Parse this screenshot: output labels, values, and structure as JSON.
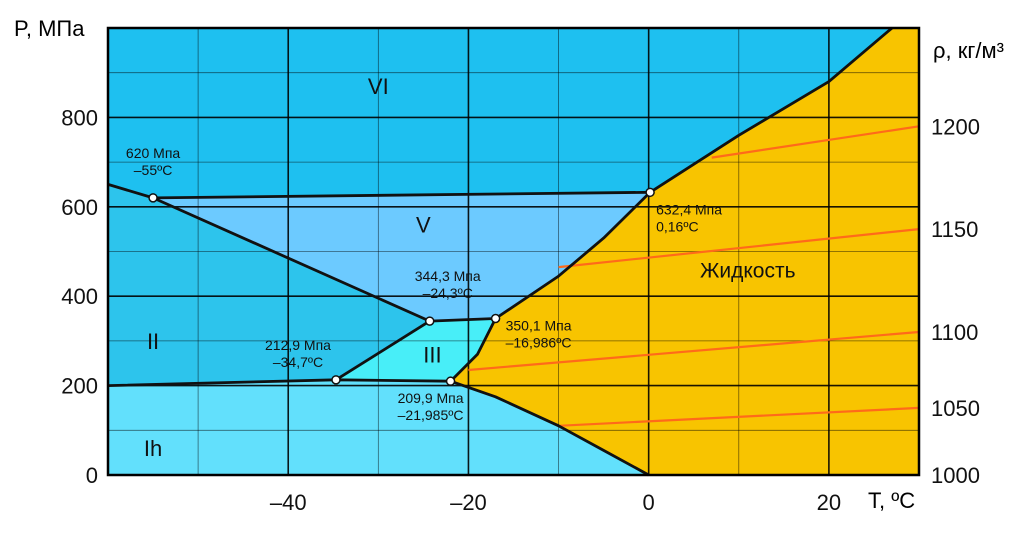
{
  "chart_data": {
    "type": "phase-diagram",
    "xlabel": "T, ºC",
    "ylabel": "P, МПа",
    "y2label": "ρ, кг/м³",
    "xlim": [
      -60,
      30
    ],
    "ylim": [
      0,
      1000
    ],
    "x_ticks": [
      -40,
      -20,
      0,
      20
    ],
    "x_tick_labels": [
      "–40",
      "–20",
      "0",
      "20"
    ],
    "y_ticks": [
      0,
      200,
      400,
      600,
      800
    ],
    "y_tick_labels": [
      "0",
      "200",
      "400",
      "600",
      "800"
    ],
    "y2_ticks": [
      {
        "label": "1000",
        "pressure": 0
      },
      {
        "label": "1050",
        "pressure": 150
      },
      {
        "label": "1100",
        "pressure": 320
      },
      {
        "label": "1150",
        "pressure": 550
      },
      {
        "label": "1200",
        "pressure": 780
      }
    ],
    "grid": true,
    "regions": [
      {
        "name": "VI",
        "label_at": [
          -30,
          870
        ],
        "color": "#1ec0f0"
      },
      {
        "name": "V",
        "label_at": [
          -25,
          560
        ],
        "color": "#6ccaff"
      },
      {
        "name": "II",
        "label_at": [
          -55,
          300
        ],
        "color": "#2dc4ec"
      },
      {
        "name": "III",
        "label_at": [
          -24,
          270
        ],
        "color": "#48eef8"
      },
      {
        "name": "Ih",
        "label_at": [
          -55,
          60
        ],
        "color": "#62e0fc"
      },
      {
        "name": "Жидкость",
        "label_at": [
          11,
          460
        ],
        "color": "#f8c400"
      }
    ],
    "phase_boundaries": [
      {
        "name": "Ih-liquid",
        "points": [
          [
            -21.985,
            209.9
          ],
          [
            -17,
            175
          ],
          [
            -10,
            110
          ],
          [
            -5,
            55
          ],
          [
            0,
            0
          ]
        ]
      },
      {
        "name": "Ih-III/II",
        "points": [
          [
            -60,
            200
          ],
          [
            -34.7,
            212.9
          ],
          [
            -21.985,
            209.9
          ]
        ]
      },
      {
        "name": "II-III",
        "points": [
          [
            -34.7,
            212.9
          ],
          [
            -24.3,
            344.3
          ]
        ]
      },
      {
        "name": "II-V/VI",
        "points": [
          [
            -60,
            650
          ],
          [
            -55,
            620
          ],
          [
            -24.3,
            344.3
          ]
        ]
      },
      {
        "name": "III-V",
        "points": [
          [
            -24.3,
            344.3
          ],
          [
            -16.986,
            350.1
          ]
        ]
      },
      {
        "name": "III-liquid",
        "points": [
          [
            -21.985,
            209.9
          ],
          [
            -19,
            270
          ],
          [
            -16.986,
            350.1
          ]
        ]
      },
      {
        "name": "V-liquid",
        "points": [
          [
            -16.986,
            350.1
          ],
          [
            -10,
            445
          ],
          [
            -5,
            530
          ],
          [
            0.16,
            632.4
          ]
        ]
      },
      {
        "name": "V-VI",
        "points": [
          [
            -55,
            620
          ],
          [
            0.16,
            632.4
          ]
        ]
      },
      {
        "name": "VI-liquid",
        "points": [
          [
            0.16,
            632.4
          ],
          [
            10,
            760
          ],
          [
            20,
            880
          ],
          [
            27,
            1000
          ]
        ]
      }
    ],
    "isochores": [
      {
        "density": "1050",
        "points": [
          [
            -10,
            110
          ],
          [
            30,
            150
          ]
        ]
      },
      {
        "density": "1100",
        "points": [
          [
            -20,
            235
          ],
          [
            30,
            320
          ]
        ]
      },
      {
        "density": "1150",
        "points": [
          [
            -10,
            465
          ],
          [
            30,
            550
          ]
        ]
      },
      {
        "density": "1200",
        "points": [
          [
            7,
            710
          ],
          [
            30,
            780
          ]
        ]
      }
    ],
    "triple_points": [
      {
        "T": -55,
        "P": 620,
        "label": [
          "620 Мпа",
          "–55ºС"
        ]
      },
      {
        "T": 0.16,
        "P": 632.4,
        "label": [
          "632,4 Мпа",
          "0,16ºС"
        ]
      },
      {
        "T": -24.3,
        "P": 344.3,
        "label": [
          "344,3 Мпа",
          "–24,3ºС"
        ]
      },
      {
        "T": -16.986,
        "P": 350.1,
        "label": [
          "350,1 Мпа",
          "–16,986ºС"
        ]
      },
      {
        "T": -34.7,
        "P": 212.9,
        "label": [
          "212,9 Мпа",
          "–34,7ºС"
        ]
      },
      {
        "T": -21.985,
        "P": 209.9,
        "label": [
          "209,9 Мпа",
          "–21,985ºС"
        ]
      }
    ]
  }
}
